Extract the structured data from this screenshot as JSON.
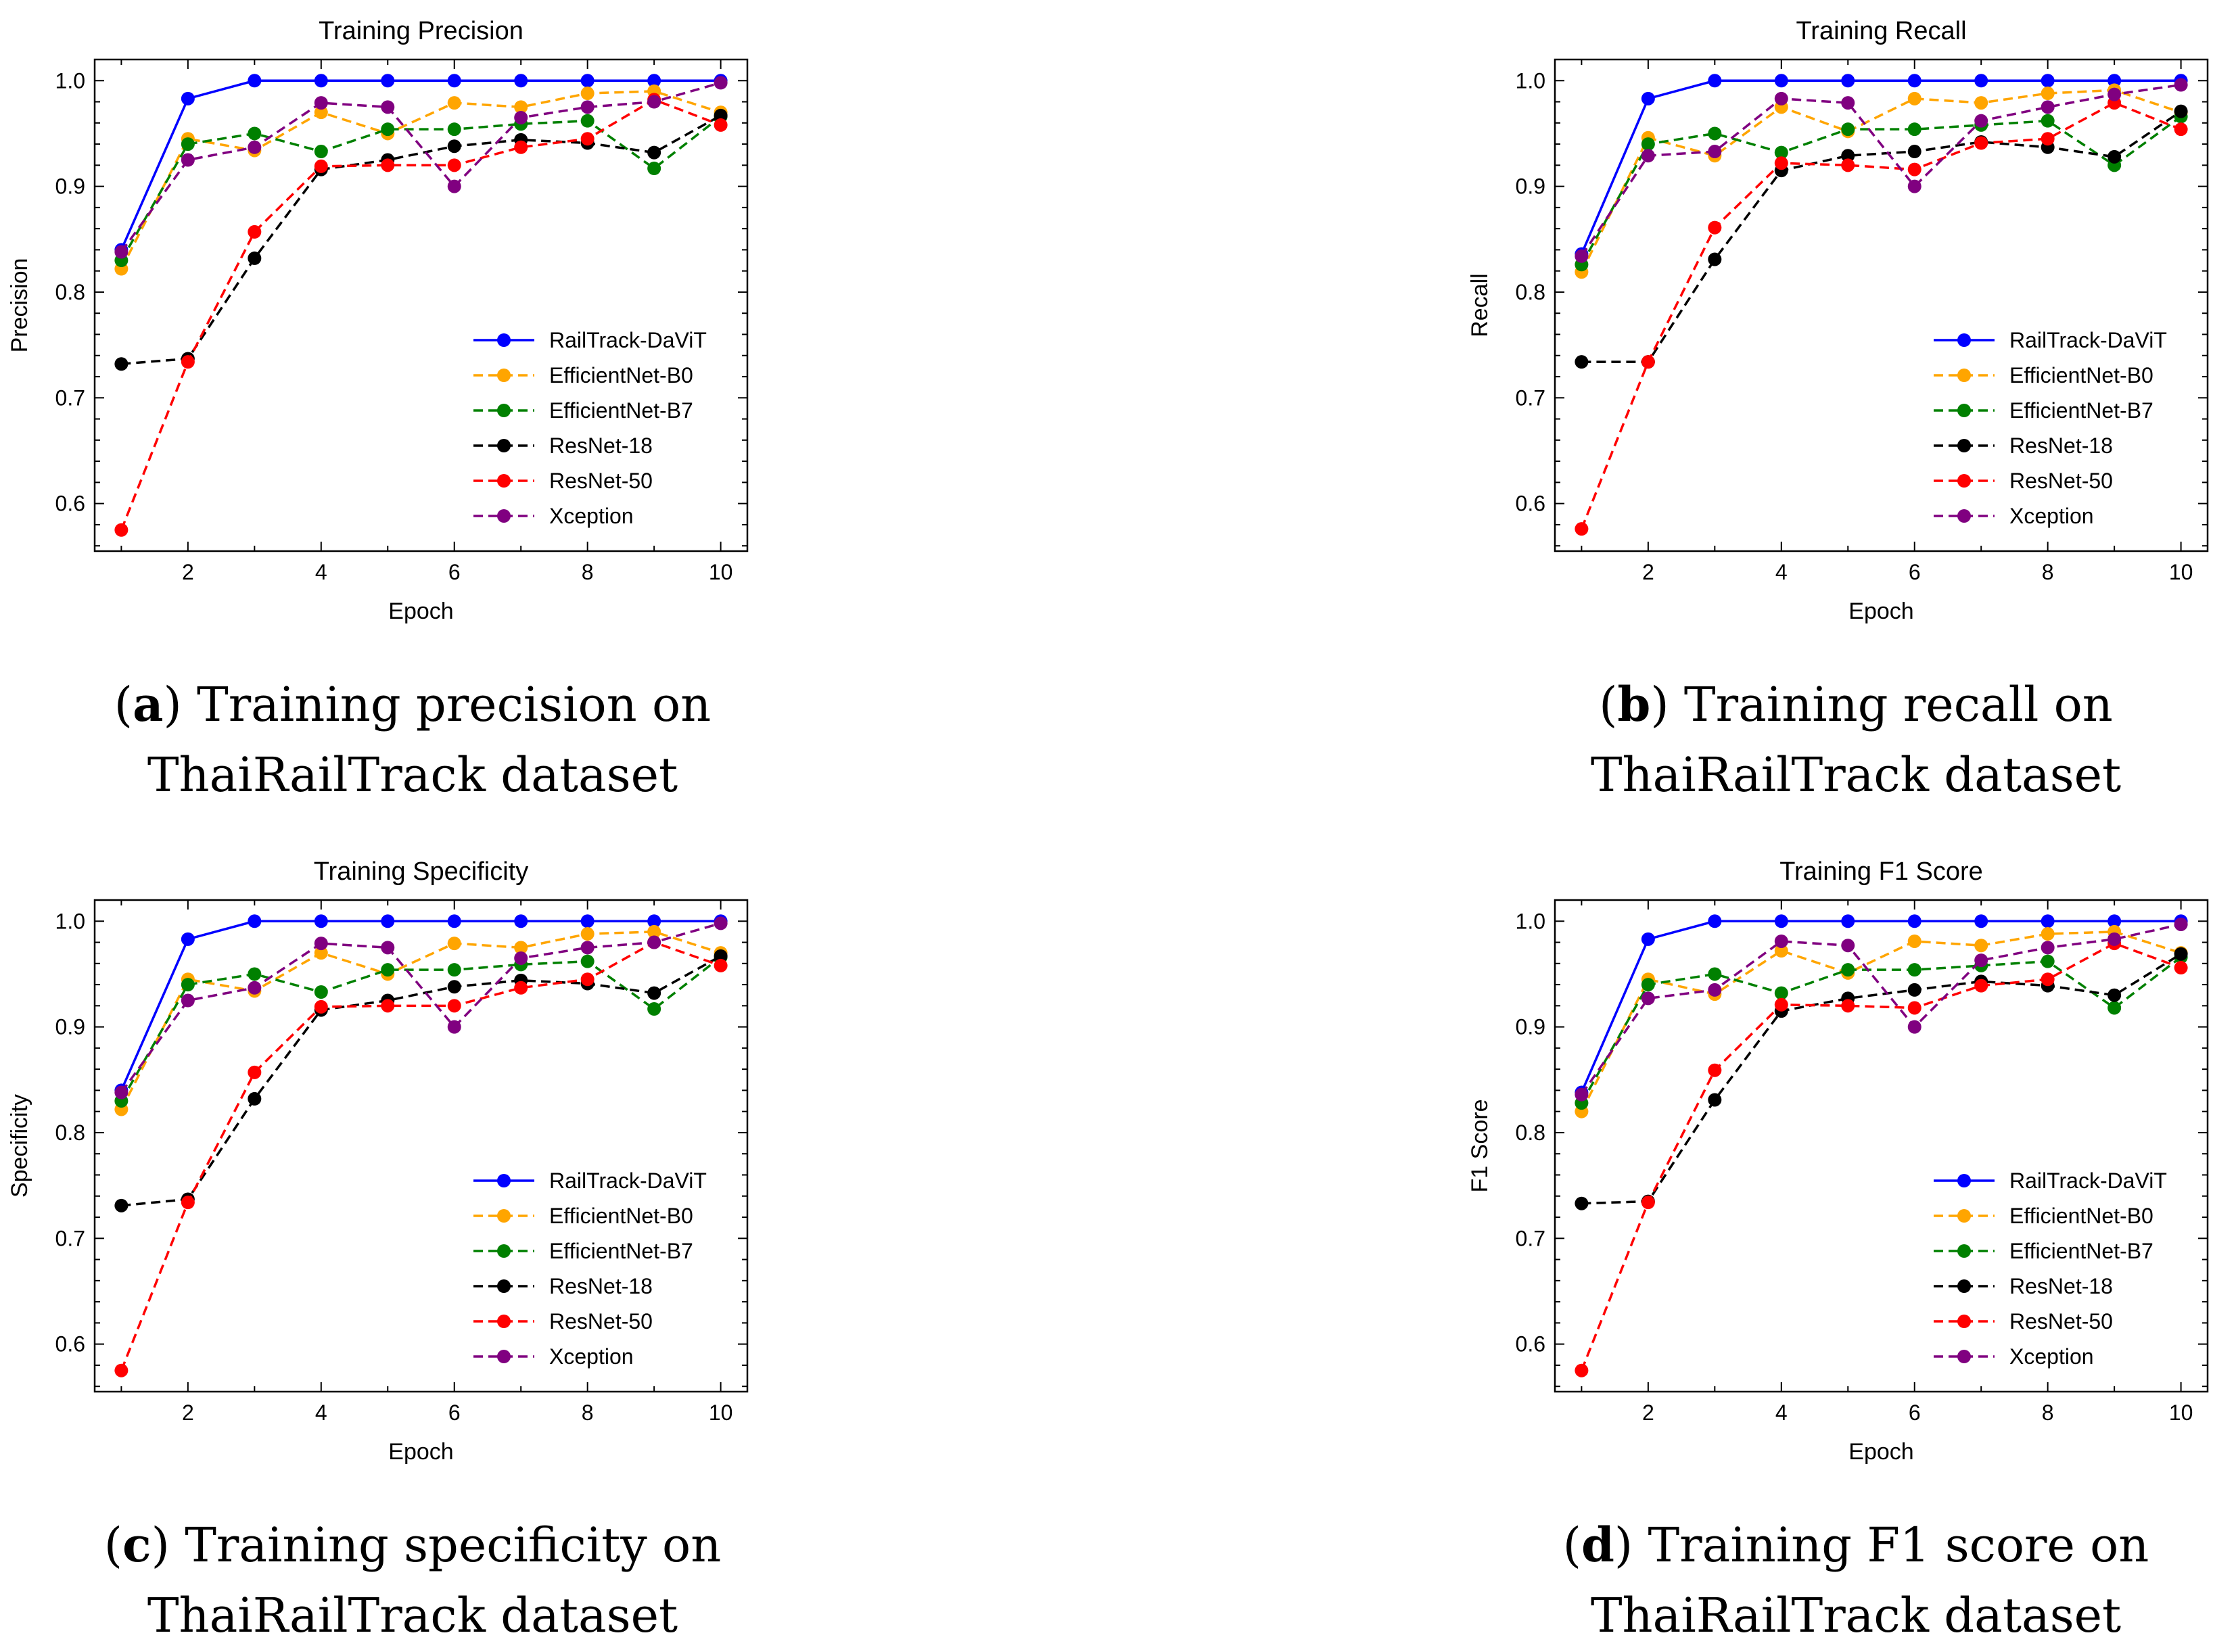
{
  "chart_data": [
    {
      "id": "a",
      "type": "line",
      "title": "Training Precision",
      "xlabel": "Epoch",
      "ylabel": "Precision",
      "xlim": [
        0.6,
        10.4
      ],
      "ylim": [
        0.555,
        1.02
      ],
      "xticks": [
        2,
        4,
        6,
        8,
        10
      ],
      "yticks": [
        0.6,
        0.7,
        0.8,
        0.9,
        1.0
      ],
      "legend_position": "right-center",
      "x": [
        1,
        2,
        3,
        4,
        5,
        6,
        7,
        8,
        9,
        10
      ],
      "series": [
        {
          "name": "RailTrack-DaViT",
          "color": "#0000ff",
          "style": "solid",
          "values": [
            0.84,
            0.983,
            1.0,
            1.0,
            1.0,
            1.0,
            1.0,
            1.0,
            1.0,
            1.0
          ]
        },
        {
          "name": "EfficientNet-B0",
          "color": "#ffa500",
          "style": "dashed",
          "values": [
            0.822,
            0.945,
            0.934,
            0.97,
            0.95,
            0.979,
            0.975,
            0.988,
            0.99,
            0.97
          ]
        },
        {
          "name": "EfficientNet-B7",
          "color": "#008000",
          "style": "dashed",
          "values": [
            0.83,
            0.94,
            0.95,
            0.933,
            0.954,
            0.954,
            0.959,
            0.962,
            0.917,
            0.966
          ]
        },
        {
          "name": "ResNet-18",
          "color": "#000000",
          "style": "dashed",
          "values": [
            0.732,
            0.737,
            0.832,
            0.916,
            0.925,
            0.938,
            0.944,
            0.941,
            0.932,
            0.967
          ]
        },
        {
          "name": "ResNet-50",
          "color": "#ff0000",
          "style": "dashed",
          "values": [
            0.575,
            0.734,
            0.857,
            0.919,
            0.92,
            0.92,
            0.937,
            0.945,
            0.982,
            0.958
          ]
        },
        {
          "name": "Xception",
          "color": "#800080",
          "style": "dashed",
          "values": [
            0.838,
            0.925,
            0.937,
            0.979,
            0.975,
            0.9,
            0.965,
            0.975,
            0.98,
            0.998
          ]
        }
      ],
      "caption_letter": "a",
      "caption_text": "Training precision on",
      "caption_line2": "ThaiRailTrack dataset"
    },
    {
      "id": "b",
      "type": "line",
      "title": "Training Recall",
      "xlabel": "Epoch",
      "ylabel": "Recall",
      "xlim": [
        0.6,
        10.4
      ],
      "ylim": [
        0.555,
        1.02
      ],
      "xticks": [
        2,
        4,
        6,
        8,
        10
      ],
      "yticks": [
        0.6,
        0.7,
        0.8,
        0.9,
        1.0
      ],
      "legend_position": "right-center",
      "x": [
        1,
        2,
        3,
        4,
        5,
        6,
        7,
        8,
        9,
        10
      ],
      "series": [
        {
          "name": "RailTrack-DaViT",
          "color": "#0000ff",
          "style": "solid",
          "values": [
            0.836,
            0.983,
            1.0,
            1.0,
            1.0,
            1.0,
            1.0,
            1.0,
            1.0,
            1.0
          ]
        },
        {
          "name": "EfficientNet-B0",
          "color": "#ffa500",
          "style": "dashed",
          "values": [
            0.819,
            0.946,
            0.929,
            0.975,
            0.952,
            0.983,
            0.979,
            0.988,
            0.991,
            0.97
          ]
        },
        {
          "name": "EfficientNet-B7",
          "color": "#008000",
          "style": "dashed",
          "values": [
            0.826,
            0.94,
            0.95,
            0.932,
            0.954,
            0.954,
            0.958,
            0.962,
            0.92,
            0.966
          ]
        },
        {
          "name": "ResNet-18",
          "color": "#000000",
          "style": "dashed",
          "values": [
            0.734,
            0.734,
            0.831,
            0.915,
            0.929,
            0.933,
            0.942,
            0.937,
            0.928,
            0.971
          ]
        },
        {
          "name": "ResNet-50",
          "color": "#ff0000",
          "style": "dashed",
          "values": [
            0.576,
            0.734,
            0.861,
            0.922,
            0.92,
            0.916,
            0.941,
            0.945,
            0.979,
            0.954
          ]
        },
        {
          "name": "Xception",
          "color": "#800080",
          "style": "dashed",
          "values": [
            0.834,
            0.929,
            0.933,
            0.983,
            0.979,
            0.9,
            0.962,
            0.975,
            0.987,
            0.996
          ]
        }
      ],
      "caption_letter": "b",
      "caption_text": "Training recall on",
      "caption_line2": "ThaiRailTrack dataset"
    },
    {
      "id": "c",
      "type": "line",
      "title": "Training Specificity",
      "xlabel": "Epoch",
      "ylabel": "Specificity",
      "xlim": [
        0.6,
        10.4
      ],
      "ylim": [
        0.555,
        1.02
      ],
      "xticks": [
        2,
        4,
        6,
        8,
        10
      ],
      "yticks": [
        0.6,
        0.7,
        0.8,
        0.9,
        1.0
      ],
      "legend_position": "right-center",
      "x": [
        1,
        2,
        3,
        4,
        5,
        6,
        7,
        8,
        9,
        10
      ],
      "series": [
        {
          "name": "RailTrack-DaViT",
          "color": "#0000ff",
          "style": "solid",
          "values": [
            0.84,
            0.983,
            1.0,
            1.0,
            1.0,
            1.0,
            1.0,
            1.0,
            1.0,
            1.0
          ]
        },
        {
          "name": "EfficientNet-B0",
          "color": "#ffa500",
          "style": "dashed",
          "values": [
            0.822,
            0.945,
            0.934,
            0.97,
            0.95,
            0.979,
            0.975,
            0.988,
            0.99,
            0.97
          ]
        },
        {
          "name": "EfficientNet-B7",
          "color": "#008000",
          "style": "dashed",
          "values": [
            0.83,
            0.94,
            0.95,
            0.933,
            0.954,
            0.954,
            0.959,
            0.962,
            0.917,
            0.966
          ]
        },
        {
          "name": "ResNet-18",
          "color": "#000000",
          "style": "dashed",
          "values": [
            0.731,
            0.737,
            0.832,
            0.916,
            0.925,
            0.938,
            0.944,
            0.941,
            0.932,
            0.967
          ]
        },
        {
          "name": "ResNet-50",
          "color": "#ff0000",
          "style": "dashed",
          "values": [
            0.575,
            0.734,
            0.857,
            0.919,
            0.92,
            0.92,
            0.937,
            0.945,
            0.98,
            0.958
          ]
        },
        {
          "name": "Xception",
          "color": "#800080",
          "style": "dashed",
          "values": [
            0.838,
            0.925,
            0.937,
            0.979,
            0.975,
            0.9,
            0.965,
            0.975,
            0.98,
            0.998
          ]
        }
      ],
      "caption_letter": "c",
      "caption_text": "Training specificity on",
      "caption_line2": "ThaiRailTrack dataset"
    },
    {
      "id": "d",
      "type": "line",
      "title": "Training F1 Score",
      "xlabel": "Epoch",
      "ylabel": "F1 Score",
      "xlim": [
        0.6,
        10.4
      ],
      "ylim": [
        0.555,
        1.02
      ],
      "xticks": [
        2,
        4,
        6,
        8,
        10
      ],
      "yticks": [
        0.6,
        0.7,
        0.8,
        0.9,
        1.0
      ],
      "legend_position": "right-center",
      "x": [
        1,
        2,
        3,
        4,
        5,
        6,
        7,
        8,
        9,
        10
      ],
      "series": [
        {
          "name": "RailTrack-DaViT",
          "color": "#0000ff",
          "style": "solid",
          "values": [
            0.838,
            0.983,
            1.0,
            1.0,
            1.0,
            1.0,
            1.0,
            1.0,
            1.0,
            1.0
          ]
        },
        {
          "name": "EfficientNet-B0",
          "color": "#ffa500",
          "style": "dashed",
          "values": [
            0.82,
            0.945,
            0.931,
            0.972,
            0.951,
            0.981,
            0.977,
            0.988,
            0.99,
            0.97
          ]
        },
        {
          "name": "EfficientNet-B7",
          "color": "#008000",
          "style": "dashed",
          "values": [
            0.828,
            0.94,
            0.95,
            0.932,
            0.954,
            0.954,
            0.958,
            0.962,
            0.918,
            0.966
          ]
        },
        {
          "name": "ResNet-18",
          "color": "#000000",
          "style": "dashed",
          "values": [
            0.733,
            0.735,
            0.831,
            0.915,
            0.927,
            0.935,
            0.943,
            0.939,
            0.93,
            0.969
          ]
        },
        {
          "name": "ResNet-50",
          "color": "#ff0000",
          "style": "dashed",
          "values": [
            0.575,
            0.734,
            0.859,
            0.921,
            0.92,
            0.918,
            0.939,
            0.945,
            0.979,
            0.956
          ]
        },
        {
          "name": "Xception",
          "color": "#800080",
          "style": "dashed",
          "values": [
            0.836,
            0.927,
            0.935,
            0.981,
            0.977,
            0.9,
            0.963,
            0.975,
            0.983,
            0.997
          ]
        }
      ],
      "caption_letter": "d",
      "caption_text": "Training F1 score on",
      "caption_line2": "ThaiRailTrack dataset"
    }
  ]
}
